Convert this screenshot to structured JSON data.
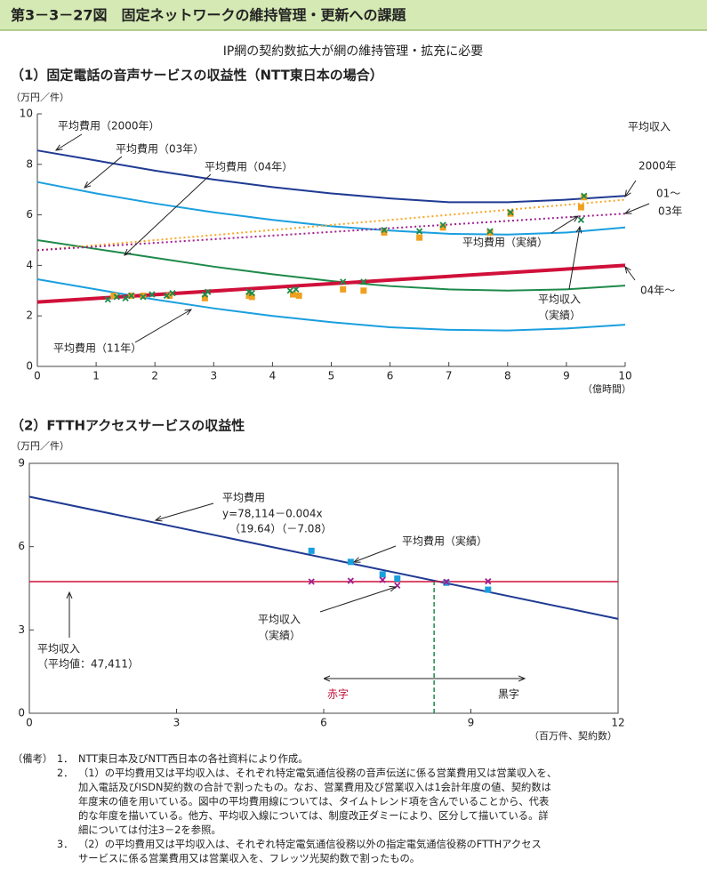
{
  "header": {
    "title": "第3－3－27図　固定ネットワークの維持管理・更新への課題"
  },
  "subtitle": "IP網の契約数拡大が網の維持管理・拡充に必要",
  "chart_data": [
    {
      "type": "line",
      "title": "（1）固定電話の音声サービスの収益性（NTT東日本の場合）",
      "y_label": "（万円／件）",
      "x_label": "（億時間）",
      "xlim": [
        0,
        10
      ],
      "ylim": [
        0,
        10
      ],
      "xticks": [
        0,
        1,
        2,
        3,
        4,
        5,
        6,
        7,
        8,
        9,
        10
      ],
      "yticks": [
        0,
        2,
        4,
        6,
        8,
        10
      ],
      "frame": false,
      "series": [
        {
          "color": "#1f3a93",
          "style": "solid",
          "width": 2,
          "x": [
            0,
            1,
            2,
            3,
            4,
            5,
            6,
            7,
            8,
            9,
            10
          ],
          "values": [
            8.55,
            8.15,
            7.75,
            7.4,
            7.1,
            6.85,
            6.65,
            6.5,
            6.5,
            6.6,
            6.75
          ]
        },
        {
          "color": "#1a9fdf",
          "style": "solid",
          "width": 2,
          "x": [
            0,
            1,
            2,
            3,
            4,
            5,
            6,
            7,
            8,
            9,
            10
          ],
          "values": [
            7.3,
            6.85,
            6.45,
            6.1,
            5.8,
            5.55,
            5.38,
            5.25,
            5.22,
            5.3,
            5.5
          ]
        },
        {
          "color": "#1e8a4a",
          "style": "solid",
          "width": 2,
          "x": [
            0,
            1,
            2,
            3,
            4,
            5,
            6,
            7,
            8,
            9,
            10
          ],
          "values": [
            5.0,
            4.65,
            4.3,
            3.95,
            3.65,
            3.38,
            3.18,
            3.05,
            3.0,
            3.05,
            3.2
          ]
        },
        {
          "color": "#1a9fdf",
          "style": "solid",
          "width": 2,
          "x": [
            0,
            1,
            2,
            3,
            4,
            5,
            6,
            7,
            8,
            9,
            10
          ],
          "values": [
            3.45,
            3.05,
            2.65,
            2.3,
            2.0,
            1.75,
            1.55,
            1.45,
            1.42,
            1.5,
            1.65
          ]
        },
        {
          "color": "#f5a623",
          "style": "dotted",
          "width": 2,
          "x": [
            0,
            10
          ],
          "values": [
            4.6,
            6.6
          ]
        },
        {
          "color": "#a0208f",
          "style": "dotted",
          "width": 2,
          "x": [
            0,
            10
          ],
          "values": [
            4.6,
            6.05
          ]
        },
        {
          "color": "#d0103a",
          "style": "solid",
          "width": 4,
          "x": [
            0,
            10
          ],
          "values": [
            2.55,
            4.0
          ]
        },
        {
          "marker": "square",
          "color": "#f0a020",
          "x": [
            1.3,
            1.6,
            1.8,
            2.25,
            2.85,
            3.6,
            3.65,
            4.35,
            4.45,
            5.2,
            5.55,
            5.9,
            6.5,
            6.9,
            7.7,
            8.05,
            9.25,
            9.3
          ],
          "values": [
            2.8,
            2.8,
            2.8,
            2.8,
            2.7,
            2.8,
            2.75,
            2.85,
            2.8,
            3.05,
            3.0,
            5.3,
            5.1,
            5.5,
            5.3,
            6.05,
            6.3,
            6.7
          ]
        },
        {
          "marker": "x",
          "color": "#1e8a4a",
          "x": [
            1.2,
            1.35,
            1.5,
            1.6,
            1.8,
            1.95,
            2.2,
            2.3,
            2.85,
            2.9,
            3.6,
            3.65,
            4.3,
            4.4,
            5.2,
            5.55,
            5.9,
            6.5,
            6.9,
            7.7,
            8.05,
            9.25,
            9.3
          ],
          "values": [
            2.65,
            2.75,
            2.7,
            2.8,
            2.75,
            2.85,
            2.8,
            2.9,
            2.85,
            2.95,
            2.95,
            2.9,
            3.0,
            3.05,
            3.35,
            3.35,
            5.4,
            5.35,
            5.6,
            5.35,
            6.1,
            5.8,
            6.75
          ]
        }
      ],
      "annotations": [
        "平均費用（2000年）",
        "平均費用（03年）",
        "平均費用（04年）",
        "平均費用（11年）",
        "平均収入",
        "2000年",
        "01～",
        "03年",
        "04年～",
        "平均費用（実績）",
        "平均収入",
        "（実績）"
      ]
    },
    {
      "type": "line",
      "title": "（2）FTTHアクセスサービスの収益性",
      "y_label": "（万円／件）",
      "x_label": "（百万件、契約数）",
      "xlim": [
        0,
        12
      ],
      "ylim": [
        0,
        9
      ],
      "xticks": [
        0,
        3,
        6,
        9,
        12
      ],
      "yticks": [
        0,
        3,
        6,
        9
      ],
      "frame": true,
      "series": [
        {
          "color": "#1f3a93",
          "style": "solid",
          "width": 2,
          "x": [
            0,
            12
          ],
          "values": [
            7.8,
            3.4
          ]
        },
        {
          "color": "#d0103a",
          "style": "solid",
          "width": 1.5,
          "x": [
            0,
            12
          ],
          "values": [
            4.74,
            4.74
          ]
        },
        {
          "color": "#1e8a4a",
          "style": "dashed",
          "width": 1.5,
          "x": [
            8.25,
            8.25
          ],
          "values": [
            0,
            4.74
          ]
        },
        {
          "marker": "square",
          "color": "#1a9fdf",
          "x": [
            5.75,
            6.55,
            7.2,
            7.5,
            8.5,
            9.35
          ],
          "values": [
            5.85,
            5.45,
            5.0,
            4.85,
            4.7,
            4.45
          ]
        },
        {
          "marker": "x",
          "color": "#a0208f",
          "x": [
            5.75,
            6.55,
            7.2,
            7.5,
            8.5,
            9.35
          ],
          "values": [
            4.74,
            4.77,
            4.8,
            4.6,
            4.73,
            4.75
          ]
        }
      ],
      "annotations": [
        "平均費用",
        "y=78,114－0.004x",
        "（19.64）（－7.08）",
        "平均費用（実績）",
        "平均収入",
        "（実績）",
        "平均収入",
        "（平均値：47,411）",
        "赤字",
        "黒字"
      ]
    }
  ],
  "notes": {
    "label": "（備考）",
    "items": [
      {
        "num": "1．",
        "lines": [
          "NTT東日本及びNTT西日本の各社資料により作成。"
        ]
      },
      {
        "num": "2．",
        "lines": [
          "（1）の平均費用又は平均収入は、それぞれ特定電気通信役務の音声伝送に係る営業費用又は営業収入を、",
          "加入電話及びISDN契約数の合計で割ったもの。なお、営業費用及び営業収入は1会計年度の値、契約数は",
          "年度末の値を用いている。図中の平均費用線については、タイムトレンド項を含んでいることから、代表",
          "的な年度を描いている。他方、平均収入線については、制度改正ダミーにより、区分して描いている。詳",
          "細については付注3－2を参照。"
        ]
      },
      {
        "num": "3．",
        "lines": [
          "（2）の平均費用又は平均収入は、それぞれ特定電気通信役務以外の指定電気通信役務のFTTHアクセス",
          "サービスに係る営業費用又は営業収入を、フレッツ光契約数で割ったもの。"
        ]
      }
    ]
  }
}
